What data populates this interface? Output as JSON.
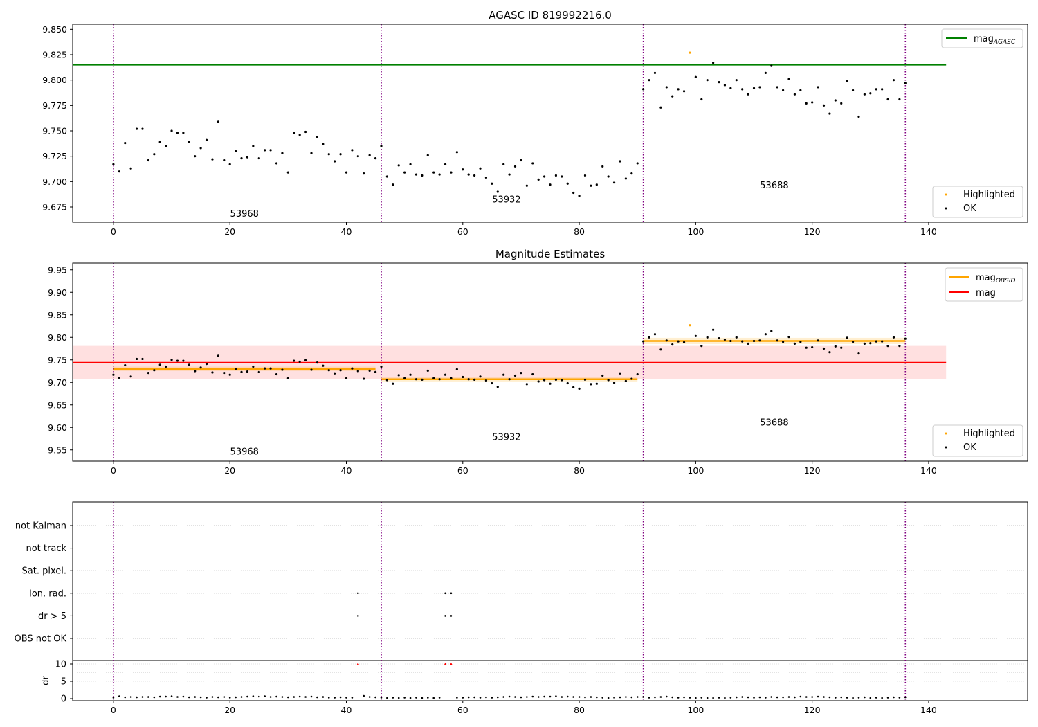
{
  "chart_data": [
    {
      "type": "scatter",
      "title": "AGASC ID 819992216.0",
      "xlim": [
        -7,
        157
      ],
      "ylim": [
        9.66,
        9.855
      ],
      "xticks": [
        0,
        20,
        40,
        60,
        80,
        100,
        120,
        140
      ],
      "xtick_labels": [
        "0",
        "20",
        "40",
        "60",
        "80",
        "100",
        "120",
        "140"
      ],
      "yticks": [
        9.675,
        9.7,
        9.725,
        9.75,
        9.775,
        9.8,
        9.825,
        9.85
      ],
      "ytick_labels": [
        "9.675",
        "9.700",
        "9.725",
        "9.750",
        "9.775",
        "9.800",
        "9.825",
        "9.850"
      ],
      "obs_boundaries": [
        0,
        46,
        91,
        136
      ],
      "obs_labels": [
        {
          "text": "53968",
          "x": 22.5,
          "y": 9.6655
        },
        {
          "text": "53932",
          "x": 67.5,
          "y": 9.6795
        },
        {
          "text": "53688",
          "x": 113.5,
          "y": 9.6935
        }
      ],
      "mag_agasc": 9.815,
      "mag_agasc_xrange": [
        -7,
        143
      ],
      "legend_top": [
        {
          "label": "mag",
          "sub": "AGASC",
          "color": "#008000"
        }
      ],
      "legend_bottom": [
        {
          "label": "Highlighted",
          "color": "#FFA500"
        },
        {
          "label": "OK",
          "color": "#000000"
        }
      ]
    },
    {
      "type": "scatter",
      "title": "Magnitude Estimates",
      "xlim": [
        -7,
        157
      ],
      "ylim": [
        9.525,
        9.965
      ],
      "xticks": [
        0,
        20,
        40,
        60,
        80,
        100,
        120,
        140
      ],
      "xtick_labels": [
        "0",
        "20",
        "40",
        "60",
        "80",
        "100",
        "120",
        "140"
      ],
      "yticks": [
        9.55,
        9.6,
        9.65,
        9.7,
        9.75,
        9.8,
        9.85,
        9.9,
        9.95
      ],
      "ytick_labels": [
        "9.55",
        "9.60",
        "9.65",
        "9.70",
        "9.75",
        "9.80",
        "9.85",
        "9.90",
        "9.95"
      ],
      "obs_boundaries": [
        0,
        46,
        91,
        136
      ],
      "obs_labels": [
        {
          "text": "53968",
          "x": 22.5,
          "y": 9.54
        },
        {
          "text": "53932",
          "x": 67.5,
          "y": 9.572
        },
        {
          "text": "53688",
          "x": 113.5,
          "y": 9.604
        }
      ],
      "mag": {
        "value": 9.744,
        "band": [
          9.707,
          9.781
        ],
        "xrange": [
          -7,
          143
        ]
      },
      "mag_obsid": [
        {
          "x": [
            0,
            45
          ],
          "value": 9.73,
          "band": [
            9.725,
            9.735
          ]
        },
        {
          "x": [
            46,
            90
          ],
          "value": 9.707,
          "band": [
            9.702,
            9.712
          ]
        },
        {
          "x": [
            91,
            136
          ],
          "value": 9.792,
          "band": [
            9.785,
            9.799
          ]
        }
      ],
      "legend_top": [
        {
          "label": "mag",
          "sub": "OBSID",
          "color": "#FFA500"
        },
        {
          "label": "mag",
          "sub": "",
          "color": "#FF0000"
        }
      ],
      "legend_bottom": [
        {
          "label": "Highlighted",
          "color": "#FFA500"
        },
        {
          "label": "OK",
          "color": "#000000"
        }
      ]
    },
    {
      "type": "scatter",
      "title": "",
      "xlim": [
        -7,
        157
      ],
      "xticks": [
        0,
        20,
        40,
        60,
        80,
        100,
        120,
        140
      ],
      "xtick_labels": [
        "0",
        "20",
        "40",
        "60",
        "80",
        "100",
        "120",
        "140"
      ],
      "ylabel": "dr",
      "flag_labels": [
        "not Kalman",
        "not track",
        "Sat. pixel.",
        "Ion. rad.",
        "dr > 5",
        "OBS not OK"
      ],
      "flags": {
        "Ion. rad.": [
          42,
          57,
          58
        ],
        "dr > 5": [
          42,
          57,
          58
        ]
      },
      "dr_ylim": [
        -0.6,
        11
      ],
      "dr_yticks": [
        0,
        5,
        10
      ],
      "dr_ytick_labels": [
        "0",
        "5",
        "10"
      ],
      "dr_outliers": [
        42,
        57,
        58
      ],
      "obs_boundaries": [
        0,
        46,
        91,
        136
      ]
    }
  ],
  "points": {
    "x": [
      0,
      1,
      2,
      3,
      4,
      5,
      6,
      7,
      8,
      9,
      10,
      11,
      12,
      13,
      14,
      15,
      16,
      17,
      18,
      19,
      20,
      21,
      22,
      23,
      24,
      25,
      26,
      27,
      28,
      29,
      30,
      31,
      32,
      33,
      34,
      35,
      36,
      37,
      38,
      39,
      40,
      41,
      42,
      43,
      44,
      45,
      46,
      47,
      48,
      49,
      50,
      51,
      52,
      53,
      54,
      55,
      56,
      57,
      58,
      59,
      60,
      61,
      62,
      63,
      64,
      65,
      66,
      67,
      68,
      69,
      70,
      71,
      72,
      73,
      74,
      75,
      76,
      77,
      78,
      79,
      80,
      81,
      82,
      83,
      84,
      85,
      86,
      87,
      88,
      89,
      90,
      91,
      92,
      93,
      94,
      95,
      96,
      97,
      98,
      99,
      100,
      101,
      102,
      103,
      104,
      105,
      106,
      107,
      108,
      109,
      110,
      111,
      112,
      113,
      114,
      115,
      116,
      117,
      118,
      119,
      120,
      121,
      122,
      123,
      124,
      125,
      126,
      127,
      128,
      129,
      130,
      131,
      132,
      133,
      134,
      135,
      136
    ],
    "mag": [
      9.717,
      9.71,
      9.738,
      9.713,
      9.752,
      9.752,
      9.721,
      9.727,
      9.739,
      9.735,
      9.75,
      9.748,
      9.748,
      9.739,
      9.725,
      9.733,
      9.741,
      9.722,
      9.759,
      9.721,
      9.717,
      9.73,
      9.723,
      9.724,
      9.735,
      9.723,
      9.731,
      9.731,
      9.718,
      9.728,
      9.709,
      9.748,
      9.746,
      9.749,
      9.728,
      9.744,
      9.737,
      9.727,
      9.72,
      9.727,
      9.709,
      9.731,
      9.725,
      9.708,
      9.726,
      9.723,
      9.735,
      9.705,
      9.697,
      9.716,
      9.709,
      9.717,
      9.707,
      9.706,
      9.726,
      9.709,
      9.707,
      9.717,
      9.709,
      9.729,
      9.712,
      9.707,
      9.706,
      9.713,
      9.704,
      9.698,
      9.69,
      9.717,
      9.707,
      9.715,
      9.721,
      9.696,
      9.718,
      9.702,
      9.705,
      9.697,
      9.706,
      9.705,
      9.698,
      9.689,
      9.686,
      9.706,
      9.696,
      9.697,
      9.715,
      9.705,
      9.699,
      9.72,
      9.703,
      9.708,
      9.718,
      9.791,
      9.8,
      9.807,
      9.773,
      9.793,
      9.784,
      9.791,
      9.789,
      9.827,
      9.803,
      9.781,
      9.8,
      9.817,
      9.798,
      9.795,
      9.792,
      9.8,
      9.791,
      9.786,
      9.792,
      9.793,
      9.807,
      9.814,
      9.793,
      9.79,
      9.801,
      9.786,
      9.79,
      9.777,
      9.778,
      9.793,
      9.775,
      9.767,
      9.78,
      9.777,
      9.799,
      9.79,
      9.764,
      9.786,
      9.787,
      9.791,
      9.791,
      9.781,
      9.8,
      9.781,
      9.797
    ],
    "highlighted": [
      99
    ],
    "dr": [
      0.3,
      0.7,
      0.4,
      0.5,
      0.4,
      0.5,
      0.5,
      0.4,
      0.6,
      0.6,
      0.7,
      0.5,
      0.6,
      0.4,
      0.5,
      0.4,
      0.3,
      0.5,
      0.4,
      0.5,
      0.3,
      0.4,
      0.5,
      0.6,
      0.7,
      0.6,
      0.7,
      0.5,
      0.6,
      0.5,
      0.4,
      0.5,
      0.6,
      0.5,
      0.6,
      0.4,
      0.5,
      0.3,
      0.3,
      0.4,
      0.3,
      0.3,
      10,
      0.8,
      0.5,
      0.4,
      0.3,
      0.2,
      0.3,
      0.2,
      0.3,
      0.2,
      0.3,
      0.2,
      0.3,
      0.2,
      0.3,
      10,
      10,
      0.3,
      0.3,
      0.4,
      0.4,
      0.3,
      0.4,
      0.3,
      0.4,
      0.5,
      0.6,
      0.5,
      0.4,
      0.5,
      0.6,
      0.5,
      0.6,
      0.6,
      0.7,
      0.5,
      0.6,
      0.5,
      0.5,
      0.4,
      0.5,
      0.4,
      0.3,
      0.2,
      0.3,
      0.4,
      0.5,
      0.4,
      0.5,
      0.5,
      0.3,
      0.4,
      0.5,
      0.6,
      0.4,
      0.3,
      0.4,
      0.3,
      0.2,
      0.3,
      0.2,
      0.2,
      0.3,
      0.2,
      0.3,
      0.4,
      0.5,
      0.4,
      0.3,
      0.4,
      0.3,
      0.5,
      0.4,
      0.4,
      0.5,
      0.4,
      0.6,
      0.5,
      0.5,
      0.6,
      0.5,
      0.4,
      0.3,
      0.4,
      0.3,
      0.2,
      0.3,
      0.4,
      0.2,
      0.3,
      0.2,
      0.3,
      0.4,
      0.3,
      0.4
    ]
  }
}
